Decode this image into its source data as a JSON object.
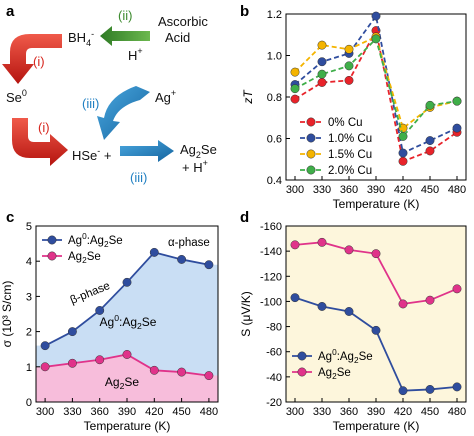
{
  "panels": {
    "a": {
      "label": "a",
      "roman": [
        "(ii)",
        "(i)",
        "(iii)",
        "(i)",
        "(iii)"
      ],
      "species": {
        "bh4": "BH4-",
        "ascorbic_1": "Ascorbic",
        "ascorbic_2": "Acid",
        "hplus_top": "H+",
        "se0": "Se0",
        "agplus": "Ag+",
        "hse": "HSe- +",
        "ag2se_1": "Ag2Se",
        "ag2se_2": "+ H+"
      },
      "colors": {
        "red": "#d7261e",
        "green": "#3d8b2f",
        "blue": "#1f7fc2"
      }
    },
    "b": {
      "label": "b"
    },
    "c": {
      "label": "c"
    },
    "d": {
      "label": "d"
    }
  },
  "chart_data": [
    {
      "panel": "b",
      "type": "line",
      "xlabel": "Temperature (K)",
      "ylabel": "zT",
      "x": [
        300,
        330,
        360,
        390,
        420,
        450,
        480
      ],
      "xticks": [
        300,
        330,
        360,
        390,
        420,
        450,
        480
      ],
      "xlim": [
        290,
        490
      ],
      "ylim": [
        0.4,
        1.2
      ],
      "yticks": [
        0.4,
        0.6,
        0.8,
        1.0,
        1.2
      ],
      "yticklabels": [
        "0.4",
        "0.6",
        "0.8",
        "1.0",
        "1.2"
      ],
      "grid": false,
      "legend_position": "bottom-left",
      "series": [
        {
          "name": "0% Cu",
          "color": "#e8232a",
          "values": [
            0.79,
            0.87,
            0.88,
            1.12,
            0.49,
            0.54,
            0.63
          ]
        },
        {
          "name": "1.0% Cu",
          "color": "#2f4d9e",
          "values": [
            0.86,
            0.97,
            1.01,
            1.19,
            0.53,
            0.59,
            0.65
          ]
        },
        {
          "name": "1.5% Cu",
          "color": "#f4b400",
          "values": [
            0.92,
            1.05,
            1.03,
            1.09,
            0.65,
            0.75,
            0.78
          ]
        },
        {
          "name": "2.0% Cu",
          "color": "#3fae49",
          "values": [
            0.84,
            0.91,
            0.95,
            1.08,
            0.61,
            0.76,
            0.78
          ]
        }
      ]
    },
    {
      "panel": "c",
      "type": "line",
      "xlabel": "Temperature (K)",
      "ylabel": "σ (10³ S/cm)",
      "x": [
        300,
        330,
        360,
        390,
        420,
        450,
        480
      ],
      "xticks": [
        300,
        330,
        360,
        390,
        420,
        450,
        480
      ],
      "xlim": [
        290,
        490
      ],
      "ylim": [
        0,
        5
      ],
      "yticks": [
        0,
        1,
        2,
        3,
        4,
        5
      ],
      "yticklabels": [
        "0",
        "1",
        "2",
        "3",
        "4",
        "5"
      ],
      "grid": false,
      "legend_position": "top-left",
      "annotations": [
        "β-phase",
        "α-phase",
        "Ag0:Ag2Se",
        "Ag2Se"
      ],
      "series": [
        {
          "name": "Ag0:Ag2Se",
          "color": "#2f4d9e",
          "fill": "#c9def4",
          "values": [
            1.6,
            2.0,
            2.6,
            3.4,
            4.25,
            4.05,
            3.9
          ]
        },
        {
          "name": "Ag2Se",
          "color": "#e0338a",
          "fill": "#f7bddb",
          "values": [
            1.0,
            1.1,
            1.2,
            1.35,
            0.9,
            0.85,
            0.75
          ]
        }
      ]
    },
    {
      "panel": "d",
      "type": "line",
      "xlabel": "Temperature (K)",
      "ylabel": "S (μV/K)",
      "x": [
        300,
        330,
        360,
        390,
        420,
        450,
        480
      ],
      "xticks": [
        300,
        330,
        360,
        390,
        420,
        450,
        480
      ],
      "xlim": [
        290,
        490
      ],
      "ylim": [
        -20,
        -160
      ],
      "yticks": [
        -20,
        -40,
        -60,
        -80,
        -100,
        -120,
        -140,
        -160
      ],
      "yticklabels": [
        "-20",
        "-40",
        "-60",
        "-80",
        "-100",
        "-120",
        "-140",
        "-160"
      ],
      "background": "#fdf6dc",
      "grid": false,
      "legend_position": "bottom-left",
      "series": [
        {
          "name": "Ag0:Ag2Se",
          "color": "#2f4d9e",
          "values": [
            -103,
            -96,
            -92,
            -77,
            -29,
            -30,
            -32
          ]
        },
        {
          "name": "Ag2Se",
          "color": "#e0338a",
          "values": [
            -145,
            -147,
            -141,
            -138,
            -98,
            -101,
            -110
          ]
        }
      ]
    }
  ]
}
